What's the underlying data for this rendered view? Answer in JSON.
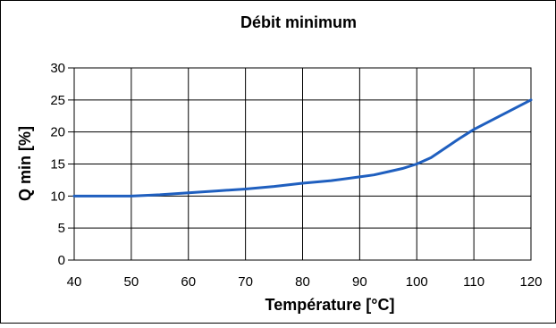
{
  "chart_data": {
    "type": "line",
    "title": "Débit minimum",
    "xlabel": "Température [°C]",
    "ylabel": "Q min [%]",
    "xlim": [
      40,
      120
    ],
    "ylim": [
      0,
      30
    ],
    "xticks": [
      40,
      50,
      60,
      70,
      80,
      90,
      100,
      110,
      120
    ],
    "yticks": [
      0,
      5,
      10,
      15,
      20,
      25,
      30
    ],
    "x_tick_labels": [
      "40",
      "50",
      "60",
      "70",
      "80",
      "90",
      "100",
      "110",
      "120"
    ],
    "y_tick_labels": [
      "0",
      "5",
      "10",
      "15",
      "20",
      "25",
      "30"
    ],
    "grid": true,
    "legend": false,
    "series": [
      {
        "color": "#1f5fbf",
        "x": [
          40,
          45,
          50,
          55,
          60,
          65,
          70,
          75,
          80,
          85,
          90,
          92.5,
          95,
          97.5,
          100,
          102.5,
          105,
          107.5,
          110,
          115,
          120
        ],
        "y": [
          10,
          10,
          10,
          10.2,
          10.5,
          10.8,
          11.1,
          11.5,
          12,
          12.4,
          13,
          13.3,
          13.8,
          14.3,
          15,
          16,
          17.5,
          19,
          20.4,
          22.7,
          25
        ]
      }
    ]
  },
  "colors": {
    "background": "#ffffff",
    "frame": "#000000",
    "grid": "#000000",
    "line": "#1f5fbf"
  }
}
